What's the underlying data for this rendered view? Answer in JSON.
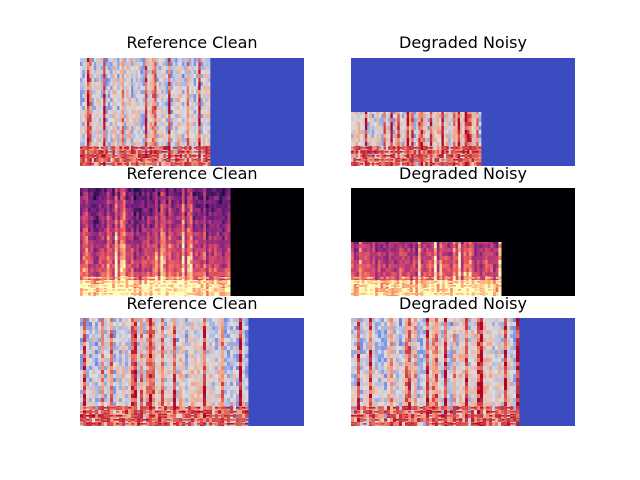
{
  "chart_data": [
    {
      "type": "heatmap",
      "title": "Reference Clean",
      "colormap": "coolwarm",
      "fill_color": "#3b4cc0",
      "active_fraction": 0.58,
      "band_top_fraction": 0.0,
      "seed": 11
    },
    {
      "type": "heatmap",
      "title": "Degraded Noisy",
      "colormap": "coolwarm",
      "fill_color": "#3b4cc0",
      "active_fraction": 0.58,
      "band_top_fraction": 0.5,
      "seed": 23
    },
    {
      "type": "heatmap",
      "title": "Reference Clean",
      "colormap": "magma",
      "fill_color": "#000004",
      "active_fraction": 0.67,
      "band_top_fraction": 0.0,
      "seed": 37
    },
    {
      "type": "heatmap",
      "title": "Degraded Noisy",
      "colormap": "magma",
      "fill_color": "#000004",
      "active_fraction": 0.67,
      "band_top_fraction": 0.5,
      "seed": 41
    },
    {
      "type": "heatmap",
      "title": "Reference Clean",
      "colormap": "coolwarm",
      "fill_color": "#3b4cc0",
      "active_fraction": 0.75,
      "band_top_fraction": 0.0,
      "seed": 53
    },
    {
      "type": "heatmap",
      "title": "Degraded Noisy",
      "colormap": "coolwarm",
      "fill_color": "#3b4cc0",
      "active_fraction": 0.75,
      "band_top_fraction": 0.0,
      "seed": 67
    }
  ]
}
